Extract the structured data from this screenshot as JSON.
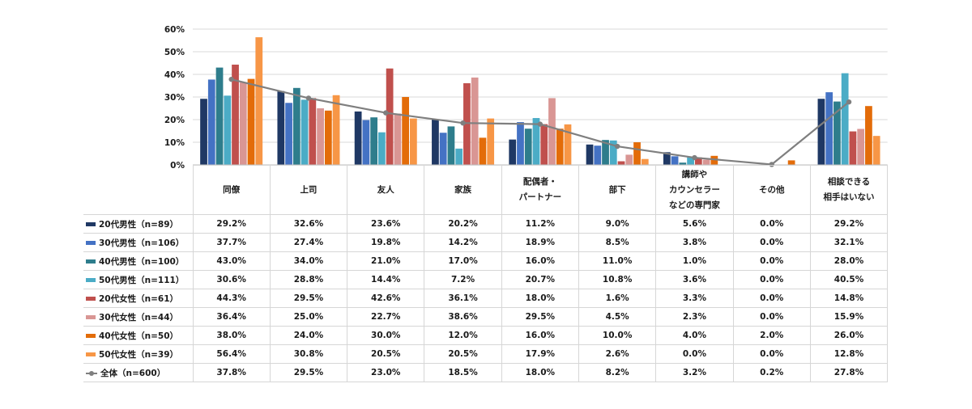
{
  "chart_data": {
    "type": "bar",
    "categories": [
      "同僚",
      "上司",
      "友人",
      "家族",
      "配偶者・\nパートナー",
      "部下",
      "講師や\nカウンセラー\nなどの専門家",
      "その他",
      "相談できる\n相手はいない"
    ],
    "ylim": [
      0,
      60
    ],
    "yticks": [
      "0%",
      "10%",
      "20%",
      "30%",
      "40%",
      "50%",
      "60%"
    ],
    "grid": true,
    "series": [
      {
        "name": "20代男性（n=89）",
        "color": "#1f3864",
        "values": [
          29.2,
          32.6,
          23.6,
          20.2,
          11.2,
          9.0,
          5.6,
          0.0,
          29.2
        ],
        "labels": [
          "29.2%",
          "32.6%",
          "23.6%",
          "20.2%",
          "11.2%",
          "9.0%",
          "5.6%",
          "0.0%",
          "29.2%"
        ]
      },
      {
        "name": "30代男性（n=106）",
        "color": "#4472c4",
        "values": [
          37.7,
          27.4,
          19.8,
          14.2,
          18.9,
          8.5,
          3.8,
          0.0,
          32.1
        ],
        "labels": [
          "37.7%",
          "27.4%",
          "19.8%",
          "14.2%",
          "18.9%",
          "8.5%",
          "3.8%",
          "0.0%",
          "32.1%"
        ]
      },
      {
        "name": "40代男性（n=100）",
        "color": "#2e7d8c",
        "values": [
          43.0,
          34.0,
          21.0,
          17.0,
          16.0,
          11.0,
          1.0,
          0.0,
          28.0
        ],
        "labels": [
          "43.0%",
          "34.0%",
          "21.0%",
          "17.0%",
          "16.0%",
          "11.0%",
          "1.0%",
          "0.0%",
          "28.0%"
        ]
      },
      {
        "name": "50代男性（n=111）",
        "color": "#4bacc6",
        "values": [
          30.6,
          28.8,
          14.4,
          7.2,
          20.7,
          10.8,
          3.6,
          0.0,
          40.5
        ],
        "labels": [
          "30.6%",
          "28.8%",
          "14.4%",
          "7.2%",
          "20.7%",
          "10.8%",
          "3.6%",
          "0.0%",
          "40.5%"
        ]
      },
      {
        "name": "20代女性（n=61）",
        "color": "#c0504d",
        "values": [
          44.3,
          29.5,
          42.6,
          36.1,
          18.0,
          1.6,
          3.3,
          0.0,
          14.8
        ],
        "labels": [
          "44.3%",
          "29.5%",
          "42.6%",
          "36.1%",
          "18.0%",
          "1.6%",
          "3.3%",
          "0.0%",
          "14.8%"
        ]
      },
      {
        "name": "30代女性（n=44）",
        "color": "#d99694",
        "values": [
          36.4,
          25.0,
          22.7,
          38.6,
          29.5,
          4.5,
          2.3,
          0.0,
          15.9
        ],
        "labels": [
          "36.4%",
          "25.0%",
          "22.7%",
          "38.6%",
          "29.5%",
          "4.5%",
          "2.3%",
          "0.0%",
          "15.9%"
        ]
      },
      {
        "name": "40代女性（n=50）",
        "color": "#e36c09",
        "values": [
          38.0,
          24.0,
          30.0,
          12.0,
          16.0,
          10.0,
          4.0,
          2.0,
          26.0
        ],
        "labels": [
          "38.0%",
          "24.0%",
          "30.0%",
          "12.0%",
          "16.0%",
          "10.0%",
          "4.0%",
          "2.0%",
          "26.0%"
        ]
      },
      {
        "name": "50代女性（n=39）",
        "color": "#f79646",
        "values": [
          56.4,
          30.8,
          20.5,
          20.5,
          17.9,
          2.6,
          0.0,
          0.0,
          12.8
        ],
        "labels": [
          "56.4%",
          "30.8%",
          "20.5%",
          "20.5%",
          "17.9%",
          "2.6%",
          "0.0%",
          "0.0%",
          "12.8%"
        ]
      }
    ],
    "total": {
      "name": "全体（n=600）",
      "color": "#7f7f7f",
      "type": "line",
      "values": [
        37.8,
        29.5,
        23.0,
        18.5,
        18.0,
        8.2,
        3.2,
        0.2,
        27.8
      ],
      "labels": [
        "37.8%",
        "29.5%",
        "23.0%",
        "18.5%",
        "18.0%",
        "8.2%",
        "3.2%",
        "0.2%",
        "27.8%"
      ]
    }
  }
}
